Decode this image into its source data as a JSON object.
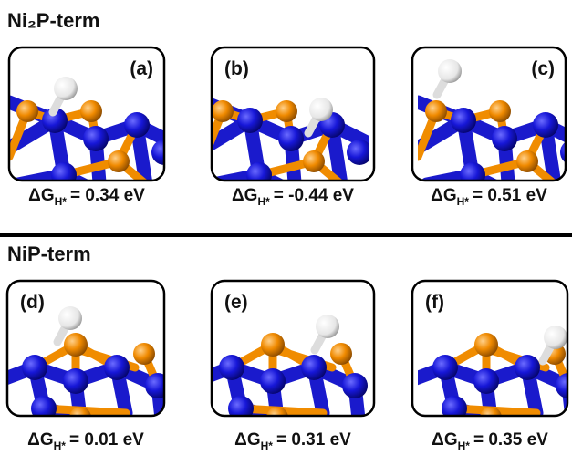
{
  "energy_symbol": "ΔG",
  "energy_subscript": "H*",
  "sections": [
    {
      "title": "Ni₂P-term",
      "panels": [
        {
          "label": "(a)",
          "energy": "= 0.34 eV"
        },
        {
          "label": "(b)",
          "energy": "= -0.44 eV"
        },
        {
          "label": "(c)",
          "energy": "= 0.51 eV"
        }
      ]
    },
    {
      "title": "NiP-term",
      "panels": [
        {
          "label": "(d)",
          "energy": "= 0.01 eV"
        },
        {
          "label": "(e)",
          "energy": "= 0.31 eV"
        },
        {
          "label": "(f)",
          "energy": "= 0.35 eV"
        }
      ]
    }
  ]
}
